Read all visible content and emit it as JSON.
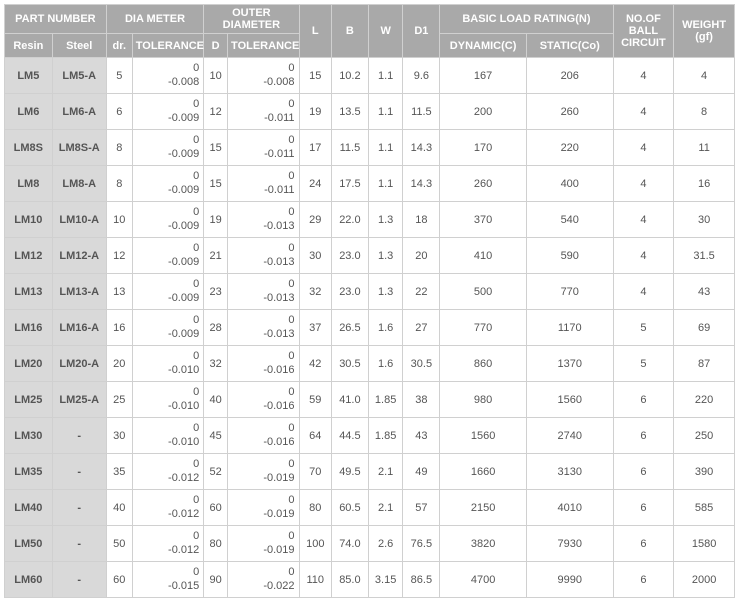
{
  "headers": {
    "part_number": "PART NUMBER",
    "dia_meter": "DIA METER",
    "outer_diameter": "OUTER DIAMETER",
    "basic_load": "BASIC LOAD RATING(N)",
    "no_ball": "NO.OF BALL CIRCUIT",
    "weight": "WEIGHT (gf)",
    "resin": "Resin",
    "steel": "Steel",
    "dr": "dr.",
    "tol1": "TOLERANCE",
    "D": "D",
    "tol2": "TOLERANCE",
    "L": "L",
    "B": "B",
    "W": "W",
    "D1": "D1",
    "dynamic": "DYNAMIC(C)",
    "static": "STATIC(Co)"
  },
  "rows": [
    {
      "resin": "LM5",
      "steel": "LM5-A",
      "dr": "5",
      "tol1_top": "0",
      "tol1_bot": "-0.008",
      "D": "10",
      "tol2_top": "0",
      "tol2_bot": "-0.008",
      "L": "15",
      "B": "10.2",
      "W": "1.1",
      "D1": "9.6",
      "dyn": "167",
      "stat": "206",
      "ball": "4",
      "wt": "4"
    },
    {
      "resin": "LM6",
      "steel": "LM6-A",
      "dr": "6",
      "tol1_top": "0",
      "tol1_bot": "-0.009",
      "D": "12",
      "tol2_top": "0",
      "tol2_bot": "-0.011",
      "L": "19",
      "B": "13.5",
      "W": "1.1",
      "D1": "11.5",
      "dyn": "200",
      "stat": "260",
      "ball": "4",
      "wt": "8"
    },
    {
      "resin": "LM8S",
      "steel": "LM8S-A",
      "dr": "8",
      "tol1_top": "0",
      "tol1_bot": "-0.009",
      "D": "15",
      "tol2_top": "0",
      "tol2_bot": "-0.011",
      "L": "17",
      "B": "11.5",
      "W": "1.1",
      "D1": "14.3",
      "dyn": "170",
      "stat": "220",
      "ball": "4",
      "wt": "11"
    },
    {
      "resin": "LM8",
      "steel": "LM8-A",
      "dr": "8",
      "tol1_top": "0",
      "tol1_bot": "-0.009",
      "D": "15",
      "tol2_top": "0",
      "tol2_bot": "-0.011",
      "L": "24",
      "B": "17.5",
      "W": "1.1",
      "D1": "14.3",
      "dyn": "260",
      "stat": "400",
      "ball": "4",
      "wt": "16"
    },
    {
      "resin": "LM10",
      "steel": "LM10-A",
      "dr": "10",
      "tol1_top": "0",
      "tol1_bot": "-0.009",
      "D": "19",
      "tol2_top": "0",
      "tol2_bot": "-0.013",
      "L": "29",
      "B": "22.0",
      "W": "1.3",
      "D1": "18",
      "dyn": "370",
      "stat": "540",
      "ball": "4",
      "wt": "30"
    },
    {
      "resin": "LM12",
      "steel": "LM12-A",
      "dr": "12",
      "tol1_top": "0",
      "tol1_bot": "-0.009",
      "D": "21",
      "tol2_top": "0",
      "tol2_bot": "-0.013",
      "L": "30",
      "B": "23.0",
      "W": "1.3",
      "D1": "20",
      "dyn": "410",
      "stat": "590",
      "ball": "4",
      "wt": "31.5"
    },
    {
      "resin": "LM13",
      "steel": "LM13-A",
      "dr": "13",
      "tol1_top": "0",
      "tol1_bot": "-0.009",
      "D": "23",
      "tol2_top": "0",
      "tol2_bot": "-0.013",
      "L": "32",
      "B": "23.0",
      "W": "1.3",
      "D1": "22",
      "dyn": "500",
      "stat": "770",
      "ball": "4",
      "wt": "43"
    },
    {
      "resin": "LM16",
      "steel": "LM16-A",
      "dr": "16",
      "tol1_top": "0",
      "tol1_bot": "-0.009",
      "D": "28",
      "tol2_top": "0",
      "tol2_bot": "-0.013",
      "L": "37",
      "B": "26.5",
      "W": "1.6",
      "D1": "27",
      "dyn": "770",
      "stat": "1170",
      "ball": "5",
      "wt": "69"
    },
    {
      "resin": "LM20",
      "steel": "LM20-A",
      "dr": "20",
      "tol1_top": "0",
      "tol1_bot": "-0.010",
      "D": "32",
      "tol2_top": "0",
      "tol2_bot": "-0.016",
      "L": "42",
      "B": "30.5",
      "W": "1.6",
      "D1": "30.5",
      "dyn": "860",
      "stat": "1370",
      "ball": "5",
      "wt": "87"
    },
    {
      "resin": "LM25",
      "steel": "LM25-A",
      "dr": "25",
      "tol1_top": "0",
      "tol1_bot": "-0.010",
      "D": "40",
      "tol2_top": "0",
      "tol2_bot": "-0.016",
      "L": "59",
      "B": "41.0",
      "W": "1.85",
      "D1": "38",
      "dyn": "980",
      "stat": "1560",
      "ball": "6",
      "wt": "220"
    },
    {
      "resin": "LM30",
      "steel": "-",
      "dr": "30",
      "tol1_top": "0",
      "tol1_bot": "-0.010",
      "D": "45",
      "tol2_top": "0",
      "tol2_bot": "-0.016",
      "L": "64",
      "B": "44.5",
      "W": "1.85",
      "D1": "43",
      "dyn": "1560",
      "stat": "2740",
      "ball": "6",
      "wt": "250"
    },
    {
      "resin": "LM35",
      "steel": "-",
      "dr": "35",
      "tol1_top": "0",
      "tol1_bot": "-0.012",
      "D": "52",
      "tol2_top": "0",
      "tol2_bot": "-0.019",
      "L": "70",
      "B": "49.5",
      "W": "2.1",
      "D1": "49",
      "dyn": "1660",
      "stat": "3130",
      "ball": "6",
      "wt": "390"
    },
    {
      "resin": "LM40",
      "steel": "-",
      "dr": "40",
      "tol1_top": "0",
      "tol1_bot": "-0.012",
      "D": "60",
      "tol2_top": "0",
      "tol2_bot": "-0.019",
      "L": "80",
      "B": "60.5",
      "W": "2.1",
      "D1": "57",
      "dyn": "2150",
      "stat": "4010",
      "ball": "6",
      "wt": "585"
    },
    {
      "resin": "LM50",
      "steel": "-",
      "dr": "50",
      "tol1_top": "0",
      "tol1_bot": "-0.012",
      "D": "80",
      "tol2_top": "0",
      "tol2_bot": "-0.019",
      "L": "100",
      "B": "74.0",
      "W": "2.6",
      "D1": "76.5",
      "dyn": "3820",
      "stat": "7930",
      "ball": "6",
      "wt": "1580"
    },
    {
      "resin": "LM60",
      "steel": "-",
      "dr": "60",
      "tol1_top": "0",
      "tol1_bot": "-0.015",
      "D": "90",
      "tol2_top": "0",
      "tol2_bot": "-0.022",
      "L": "110",
      "B": "85.0",
      "W": "3.15",
      "D1": "86.5",
      "dyn": "4700",
      "stat": "9990",
      "ball": "6",
      "wt": "2000"
    }
  ],
  "style": {
    "header_bg": "#a9a9a9",
    "header_fg": "#ffffff",
    "rowhead_bg": "#d9d9d9",
    "border": "#d0d0d0",
    "text": "#555555"
  }
}
